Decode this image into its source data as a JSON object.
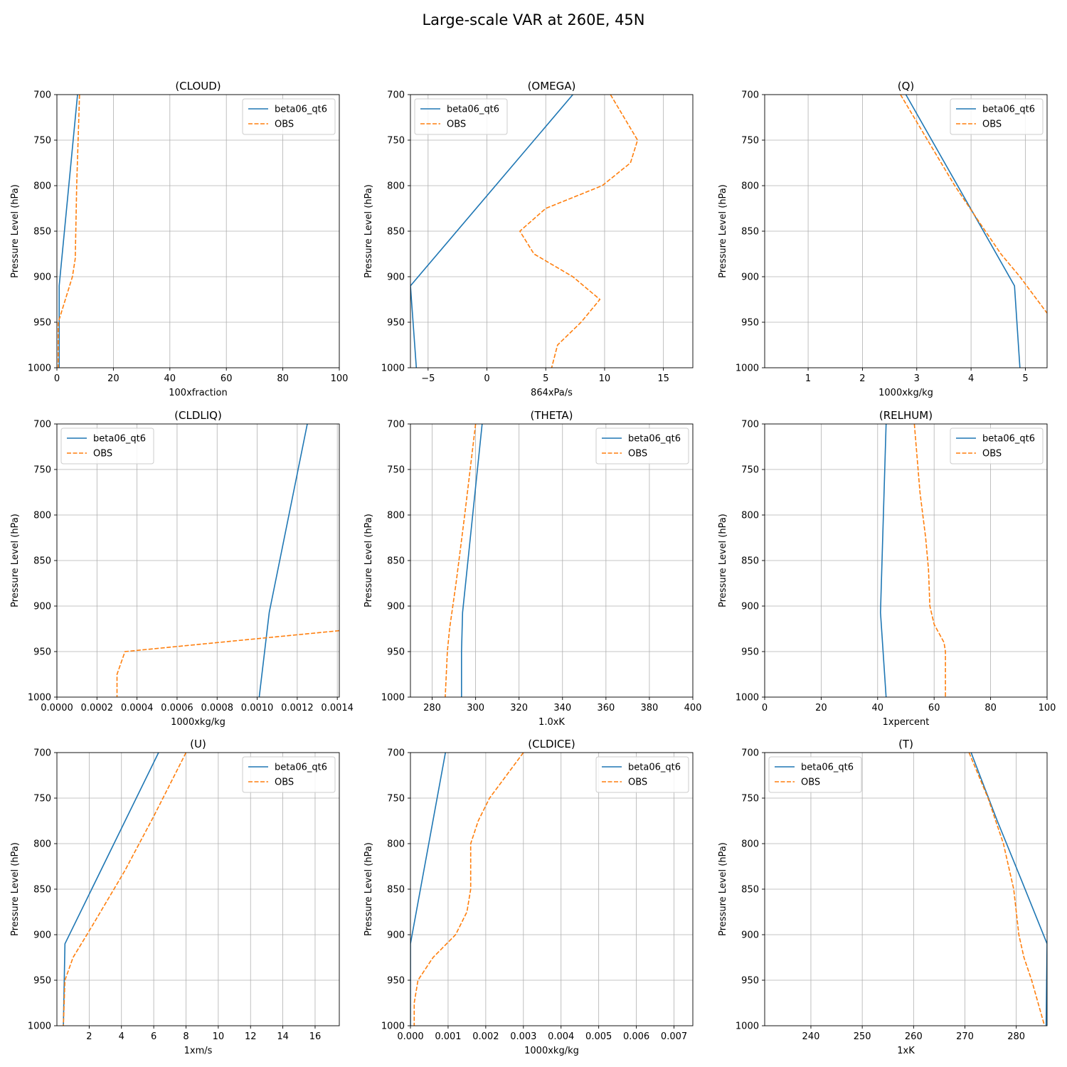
{
  "figure": {
    "title": "Large-scale VAR at 260E, 45N"
  },
  "ylabel": "Pressure Level (hPa)",
  "colors": {
    "model": "#1f77b4",
    "obs": "#ff7f0e",
    "grid": "#b0b0b0"
  },
  "chart_data": [
    {
      "type": "line",
      "title": "(CLOUD)",
      "xlabel": "100xfraction",
      "ylabel": "Pressure Level (hPa)",
      "xlim": [
        0,
        100
      ],
      "ylim": [
        1000,
        700
      ],
      "y_inverted": true,
      "xticks": [
        0,
        20,
        40,
        60,
        80,
        100
      ],
      "xtick_labels": [
        "0",
        "20",
        "40",
        "60",
        "80",
        "100"
      ],
      "yticks": [
        700,
        750,
        800,
        850,
        900,
        950,
        1000
      ],
      "grid": true,
      "legend_location": "upper right",
      "series": [
        {
          "name": "beta06_qt6",
          "style": "solid",
          "x": [
            7.3,
            0.8,
            0.8,
            0.8
          ],
          "y": [
            700,
            910,
            950,
            1000
          ]
        },
        {
          "name": "OBS",
          "style": "dashed",
          "x": [
            8.0,
            7.0,
            6.5,
            5.5,
            0.5,
            0.5
          ],
          "y": [
            700,
            800,
            880,
            900,
            950,
            1000
          ]
        }
      ]
    },
    {
      "type": "line",
      "title": "(OMEGA)",
      "xlabel": "864xPa/s",
      "ylabel": "Pressure Level (hPa)",
      "xlim": [
        -6.5,
        17.5
      ],
      "ylim": [
        1000,
        700
      ],
      "y_inverted": true,
      "xticks": [
        -5,
        0,
        5,
        10,
        15
      ],
      "xtick_labels": [
        "−5",
        "0",
        "5",
        "10",
        "15"
      ],
      "yticks": [
        700,
        750,
        800,
        850,
        900,
        950,
        1000
      ],
      "grid": true,
      "legend_location": "upper left",
      "series": [
        {
          "name": "beta06_qt6",
          "style": "solid",
          "x": [
            7.3,
            -6.5,
            -6.0
          ],
          "y": [
            700,
            910,
            1000
          ]
        },
        {
          "name": "OBS",
          "style": "dashed",
          "x": [
            10.5,
            12.8,
            12.2,
            9.8,
            5.0,
            2.8,
            4.0,
            7.3,
            9.6,
            8.0,
            6.0,
            5.5
          ],
          "y": [
            700,
            750,
            775,
            800,
            825,
            850,
            875,
            900,
            925,
            950,
            975,
            1000
          ]
        }
      ]
    },
    {
      "type": "line",
      "title": "(Q)",
      "xlabel": "1000xkg/kg",
      "ylabel": "Pressure Level (hPa)",
      "xlim": [
        0.2,
        5.4
      ],
      "ylim": [
        1000,
        700
      ],
      "y_inverted": true,
      "xticks": [
        1,
        2,
        3,
        4,
        5
      ],
      "xtick_labels": [
        "1",
        "2",
        "3",
        "4",
        "5"
      ],
      "yticks": [
        700,
        750,
        800,
        850,
        900,
        950,
        1000
      ],
      "grid": true,
      "legend_location": "upper right",
      "series": [
        {
          "name": "beta06_qt6",
          "style": "solid",
          "x": [
            2.8,
            4.8,
            4.9
          ],
          "y": [
            700,
            910,
            1000
          ]
        },
        {
          "name": "OBS",
          "style": "dashed",
          "x": [
            2.7,
            3.2,
            3.7,
            4.15,
            4.55,
            4.9,
            5.4
          ],
          "y": [
            700,
            750,
            800,
            840,
            875,
            900,
            940
          ]
        }
      ]
    },
    {
      "type": "line",
      "title": "(CLDLIQ)",
      "xlabel": "1000xkg/kg",
      "ylabel": "Pressure Level (hPa)",
      "xlim": [
        0,
        0.00141
      ],
      "ylim": [
        1000,
        700
      ],
      "y_inverted": true,
      "xticks": [
        0,
        0.0002,
        0.0004,
        0.0006,
        0.0008,
        0.001,
        0.0012,
        0.0014
      ],
      "xtick_labels": [
        "0.0000",
        "0.0002",
        "0.0004",
        "0.0006",
        "0.0008",
        "0.0010",
        "0.0012",
        "0.0014"
      ],
      "yticks": [
        700,
        750,
        800,
        850,
        900,
        950,
        1000
      ],
      "grid": true,
      "legend_location": "upper left",
      "series": [
        {
          "name": "beta06_qt6",
          "style": "solid",
          "x": [
            0.00125,
            0.00106,
            0.00101
          ],
          "y": [
            700,
            907,
            1000
          ]
        },
        {
          "name": "OBS",
          "style": "dashed",
          "x": [
            0.00141,
            0.00034,
            0.0003,
            0.0003
          ],
          "y": [
            927,
            950,
            975,
            1000
          ]
        }
      ]
    },
    {
      "type": "line",
      "title": "(THETA)",
      "xlabel": "1.0xK",
      "ylabel": "Pressure Level (hPa)",
      "xlim": [
        270,
        400
      ],
      "ylim": [
        1000,
        700
      ],
      "y_inverted": true,
      "xticks": [
        280,
        300,
        320,
        340,
        360,
        380,
        400
      ],
      "xtick_labels": [
        "280",
        "300",
        "320",
        "340",
        "360",
        "380",
        "400"
      ],
      "yticks": [
        700,
        750,
        800,
        850,
        900,
        950,
        1000
      ],
      "grid": true,
      "legend_location": "upper right",
      "series": [
        {
          "name": "beta06_qt6",
          "style": "solid",
          "x": [
            303,
            294,
            293.5,
            293.5
          ],
          "y": [
            700,
            907,
            950,
            1000
          ]
        },
        {
          "name": "OBS",
          "style": "dashed",
          "x": [
            300,
            295,
            291,
            288,
            287,
            286
          ],
          "y": [
            700,
            800,
            875,
            925,
            950,
            1000
          ]
        }
      ]
    },
    {
      "type": "line",
      "title": "(RELHUM)",
      "xlabel": "1xpercent",
      "ylabel": "Pressure Level (hPa)",
      "xlim": [
        0,
        100
      ],
      "ylim": [
        1000,
        700
      ],
      "y_inverted": true,
      "xticks": [
        0,
        20,
        40,
        60,
        80,
        100
      ],
      "xtick_labels": [
        "0",
        "20",
        "40",
        "60",
        "80",
        "100"
      ],
      "yticks": [
        700,
        750,
        800,
        850,
        900,
        950,
        1000
      ],
      "grid": true,
      "legend_location": "upper right",
      "series": [
        {
          "name": "beta06_qt6",
          "style": "solid",
          "x": [
            43,
            41,
            43
          ],
          "y": [
            700,
            907,
            1000
          ]
        },
        {
          "name": "OBS",
          "style": "dashed",
          "x": [
            53,
            55,
            57,
            58,
            58.5,
            60,
            63.5,
            64,
            64
          ],
          "y": [
            700,
            775,
            825,
            860,
            900,
            920,
            940,
            950,
            1000
          ]
        }
      ]
    },
    {
      "type": "line",
      "title": "(U)",
      "xlabel": "1xm/s",
      "ylabel": "Pressure Level (hPa)",
      "xlim": [
        0,
        17.5
      ],
      "ylim": [
        1000,
        700
      ],
      "y_inverted": true,
      "xticks": [
        2,
        4,
        6,
        8,
        10,
        12,
        14,
        16
      ],
      "xtick_labels": [
        "2",
        "4",
        "6",
        "8",
        "10",
        "12",
        "14",
        "16"
      ],
      "yticks": [
        700,
        750,
        800,
        850,
        900,
        950,
        1000
      ],
      "grid": true,
      "legend_location": "upper right",
      "series": [
        {
          "name": "beta06_qt6",
          "style": "solid",
          "x": [
            6.3,
            0.5,
            0.4
          ],
          "y": [
            700,
            910,
            1000
          ]
        },
        {
          "name": "OBS",
          "style": "dashed",
          "x": [
            8.0,
            6.0,
            4.2,
            2.2,
            1.0,
            0.5,
            0.4
          ],
          "y": [
            700,
            770,
            830,
            890,
            925,
            950,
            1000
          ]
        }
      ]
    },
    {
      "type": "line",
      "title": "(CLDICE)",
      "xlabel": "1000xkg/kg",
      "ylabel": "Pressure Level (hPa)",
      "xlim": [
        0,
        0.0075
      ],
      "ylim": [
        1000,
        700
      ],
      "y_inverted": true,
      "xticks": [
        0,
        0.001,
        0.002,
        0.003,
        0.004,
        0.005,
        0.006,
        0.007
      ],
      "xtick_labels": [
        "0.000",
        "0.001",
        "0.002",
        "0.003",
        "0.004",
        "0.005",
        "0.006",
        "0.007"
      ],
      "yticks": [
        700,
        750,
        800,
        850,
        900,
        950,
        1000
      ],
      "grid": true,
      "legend_location": "upper right",
      "series": [
        {
          "name": "beta06_qt6",
          "style": "solid",
          "x": [
            0.00093,
            0.0,
            0.0
          ],
          "y": [
            700,
            910,
            1000
          ]
        },
        {
          "name": "OBS",
          "style": "dashed",
          "x": [
            0.003,
            0.0021,
            0.0018,
            0.0016,
            0.0016,
            0.0015,
            0.0012,
            0.0006,
            0.0002,
            0.0001,
            0.0001
          ],
          "y": [
            700,
            750,
            775,
            800,
            850,
            875,
            900,
            925,
            950,
            975,
            1000
          ]
        }
      ]
    },
    {
      "type": "line",
      "title": "(T)",
      "xlabel": "1xK",
      "ylabel": "Pressure Level (hPa)",
      "xlim": [
        231,
        286
      ],
      "ylim": [
        1000,
        700
      ],
      "y_inverted": true,
      "xticks": [
        240,
        250,
        260,
        270,
        280
      ],
      "xtick_labels": [
        "240",
        "250",
        "260",
        "270",
        "280"
      ],
      "yticks": [
        700,
        750,
        800,
        850,
        900,
        950,
        1000
      ],
      "grid": true,
      "legend_location": "upper left",
      "series": [
        {
          "name": "beta06_qt6",
          "style": "solid",
          "x": [
            271.2,
            276.3,
            281.0,
            286.0,
            285.8
          ],
          "y": [
            700,
            775,
            840,
            910,
            1000
          ]
        },
        {
          "name": "OBS",
          "style": "dashed",
          "x": [
            270.8,
            274.5,
            277.5,
            279.5,
            280.5,
            281.5,
            283.0,
            285.5
          ],
          "y": [
            700,
            750,
            800,
            850,
            900,
            925,
            950,
            1000
          ]
        }
      ]
    }
  ]
}
